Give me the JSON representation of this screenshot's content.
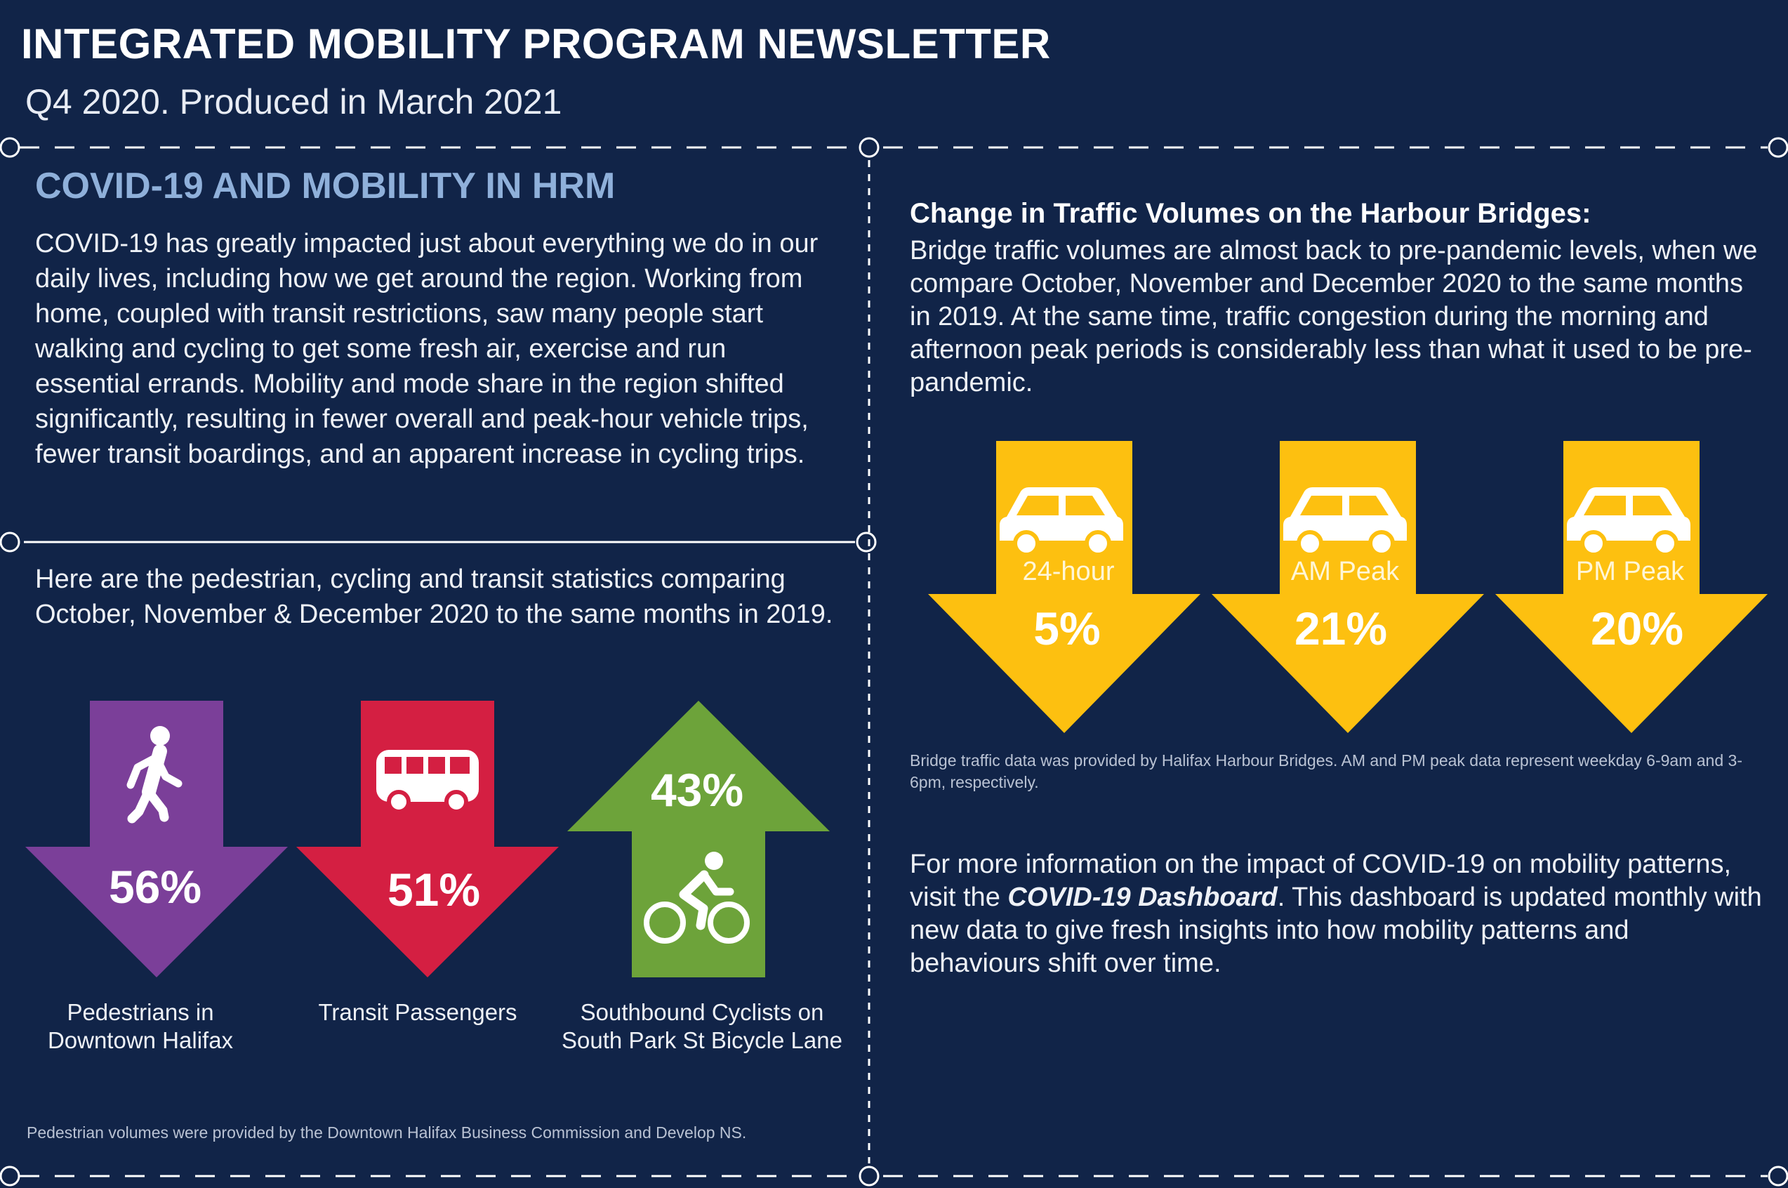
{
  "header": {
    "title": "INTEGRATED MOBILITY PROGRAM NEWSLETTER",
    "subtitle": "Q4 2020. Produced in March 2021"
  },
  "covid_section": {
    "heading": "COVID-19 AND MOBILITY IN HRM",
    "body": "COVID-19 has greatly impacted just about everything we do in our daily lives, including how we get around the region. Working from home, coupled with transit restrictions, saw many people start walking and cycling to get some fresh air, exercise and run essential errands. Mobility and mode share in the region shifted significantly, resulting in fewer overall and peak-hour vehicle trips, fewer transit boardings, and an apparent increase in cycling trips."
  },
  "stats_section": {
    "intro": "Here are the pedestrian, cycling and transit statistics comparing October, November & December 2020 to the same months in 2019.",
    "stats": [
      {
        "value": "56%",
        "direction": "down",
        "label_line1": "Pedestrians in",
        "label_line2": "Downtown Halifax",
        "color": "#7b3f99",
        "icon": "pedestrian-icon"
      },
      {
        "value": "51%",
        "direction": "down",
        "label_line1": "Transit Passengers",
        "label_line2": "",
        "color": "#d41f42",
        "icon": "bus-icon"
      },
      {
        "value": "43%",
        "direction": "up",
        "label_line1": "Southbound Cyclists on",
        "label_line2": "South Park St Bicycle Lane",
        "color": "#6da33a",
        "icon": "cyclist-icon"
      }
    ],
    "note": "Pedestrian volumes were provided by the Downtown Halifax Business Commission and Develop NS."
  },
  "bridge_section": {
    "heading": "Change in Traffic Volumes on the Harbour Bridges:",
    "body": "Bridge traffic volumes are almost back to pre-pandemic levels, when we compare October, November and December 2020 to the same months in 2019. At the same time, traffic congestion during the morning and afternoon peak periods is considerably less than what it used to be pre-pandemic.",
    "stats": [
      {
        "period": "24-hour",
        "value": "5%",
        "direction": "down",
        "icon": "car-icon"
      },
      {
        "period": "AM Peak",
        "value": "21%",
        "direction": "down",
        "icon": "car-icon"
      },
      {
        "period": "PM Peak",
        "value": "20%",
        "direction": "down",
        "icon": "car-icon"
      }
    ],
    "arrow_color": "#fdc010",
    "note": "Bridge traffic data was provided by Halifax Harbour Bridges. AM and PM peak data represent weekday 6-9am and 3-6pm, respectively."
  },
  "more_info": {
    "before": "For more information on the impact of COVID-19 on mobility patterns, visit the ",
    "link": "COVID-19 Dashboard",
    "after": ". This dashboard is updated monthly with new data to give fresh insights into how mobility patterns and behaviours shift over time."
  },
  "colors": {
    "background": "#112448",
    "heading_blue": "#8fb0da"
  }
}
